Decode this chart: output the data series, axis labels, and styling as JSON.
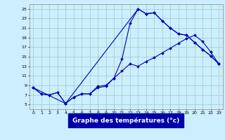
{
  "xlabel": "Graphe des températures (°c)",
  "background_color": "#cceeff",
  "grid_color": "#99ccbb",
  "line_color": "#0000bb",
  "xlim": [
    -0.5,
    23.5
  ],
  "ylim": [
    4,
    26
  ],
  "xticks": [
    0,
    1,
    2,
    3,
    4,
    5,
    6,
    7,
    8,
    9,
    10,
    11,
    12,
    13,
    14,
    15,
    16,
    17,
    18,
    19,
    20,
    21,
    22,
    23
  ],
  "yticks": [
    5,
    7,
    9,
    11,
    13,
    15,
    17,
    19,
    21,
    23,
    25
  ],
  "series1_x": [
    0,
    1,
    2,
    3,
    4,
    5,
    6,
    7,
    8,
    9,
    10,
    11,
    12,
    13,
    14,
    15,
    16,
    17,
    18,
    19,
    20,
    21,
    22,
    23
  ],
  "series1_y": [
    8.5,
    7.2,
    7.0,
    7.5,
    5.2,
    6.5,
    7.2,
    7.2,
    8.5,
    8.8,
    10.5,
    14.5,
    22.0,
    25.0,
    24.0,
    24.2,
    22.5,
    21.0,
    19.8,
    19.5,
    18.0,
    16.5,
    15.2,
    13.5
  ],
  "series2_x": [
    0,
    1,
    2,
    3,
    4,
    5,
    6,
    7,
    8,
    9,
    10,
    11,
    12,
    13,
    14,
    15,
    16,
    17,
    18,
    19,
    20,
    21,
    22,
    23
  ],
  "series2_y": [
    8.5,
    7.2,
    7.0,
    7.5,
    5.2,
    6.5,
    7.2,
    7.2,
    8.8,
    9.0,
    10.5,
    12.0,
    13.5,
    13.0,
    14.0,
    14.8,
    15.8,
    16.8,
    17.8,
    18.8,
    19.5,
    18.2,
    16.0,
    13.5
  ],
  "series3_x": [
    0,
    4,
    13,
    14,
    15,
    16,
    17,
    18,
    19,
    20,
    21,
    22,
    23
  ],
  "series3_y": [
    8.5,
    5.2,
    25.0,
    24.0,
    24.2,
    22.5,
    21.0,
    19.8,
    19.5,
    18.0,
    16.5,
    15.2,
    13.5
  ],
  "xlabel_bg_color": "#0000aa",
  "xlabel_text_color": "#ffffff",
  "xlabel_fontsize": 6.5,
  "tick_fontsize": 4.5,
  "marker_size": 2.0,
  "line_width": 0.8
}
